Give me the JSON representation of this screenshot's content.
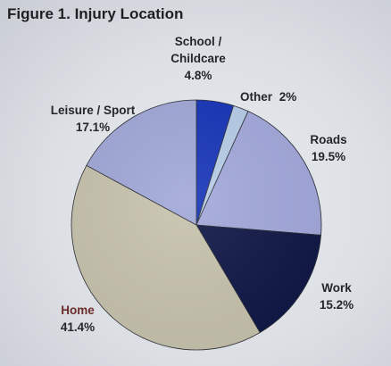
{
  "title": "Figure 1. Injury Location",
  "colors": {
    "school": "#1634b8",
    "other": "#b7cde8",
    "roads": "#a3a9dc",
    "work": "#0f1746",
    "home": "#c7c3ad",
    "leisure": "#a1a8d8"
  },
  "chart_data": {
    "type": "pie",
    "title": "Figure 1. Injury Location",
    "slices": [
      {
        "key": "school",
        "label": "School / Childcare",
        "label_lines": [
          "School /",
          "Childcare"
        ],
        "value": 4.8,
        "value_label": "4.8%"
      },
      {
        "key": "other",
        "label": "Other",
        "label_lines": [
          "Other"
        ],
        "value": 2,
        "value_label": "2%"
      },
      {
        "key": "roads",
        "label": "Roads",
        "label_lines": [
          "Roads"
        ],
        "value": 19.5,
        "value_label": "19.5%"
      },
      {
        "key": "work",
        "label": "Work",
        "label_lines": [
          "Work"
        ],
        "value": 15.2,
        "value_label": "15.2%"
      },
      {
        "key": "home",
        "label": "Home",
        "label_lines": [
          "Home"
        ],
        "value": 41.4,
        "value_label": "41.4%"
      },
      {
        "key": "leisure",
        "label": "Leisure / Sport",
        "label_lines": [
          "Leisure / Sport"
        ],
        "value": 17.1,
        "value_label": "17.1%"
      }
    ],
    "start_angle": "12 o'clock",
    "direction": "clockwise",
    "legend": "none"
  }
}
